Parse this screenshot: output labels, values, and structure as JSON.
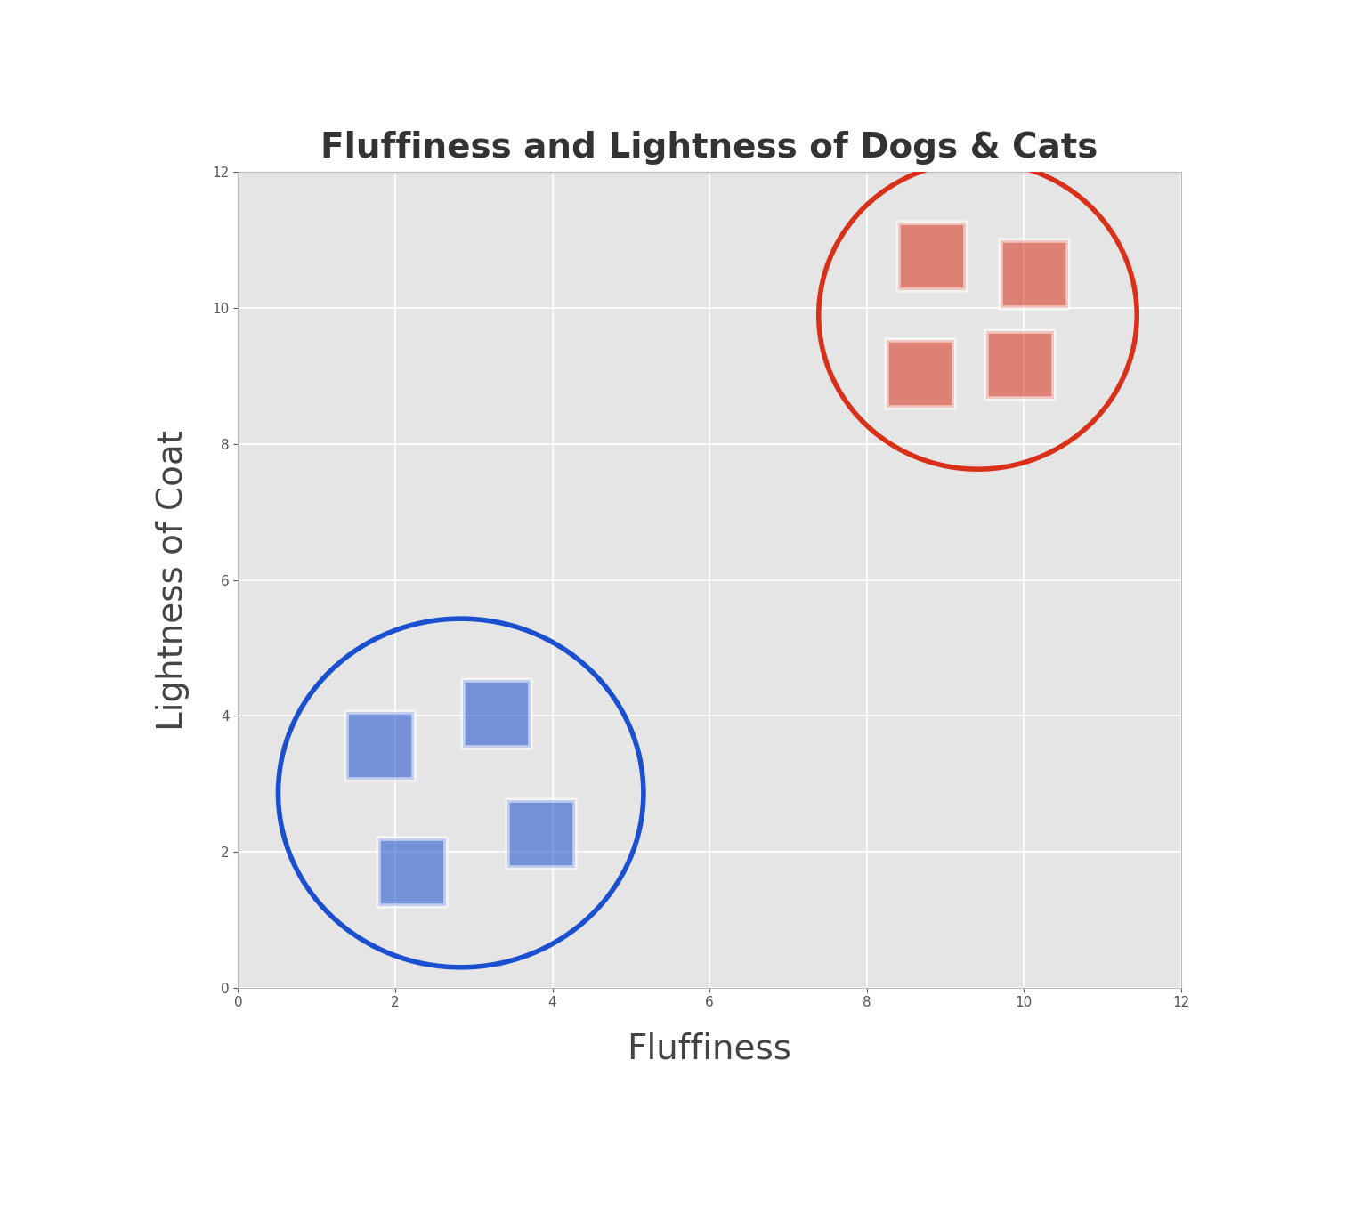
{
  "chart_data": {
    "type": "scatter",
    "title": "Fluffiness and Lightness of Dogs & Cats",
    "x_label": "Fluffiness",
    "y_label": "Lightness of Coat",
    "series": [
      {
        "color": "#1a4fd0",
        "marker": "square",
        "x": [
          1.81,
          3.29,
          3.86,
          2.21
        ],
        "values": [
          3.56,
          4.03,
          2.26,
          1.7
        ]
      },
      {
        "color": "#d9301a",
        "marker": "square",
        "x": [
          8.83,
          10.14,
          8.69,
          9.95
        ],
        "values": [
          10.76,
          10.5,
          9.03,
          9.16
        ]
      }
    ],
    "xlim": [
      0,
      12
    ],
    "ylim": [
      0,
      12
    ],
    "xticks": [
      0,
      2,
      4,
      6,
      8,
      10,
      12
    ],
    "yticks": [
      0,
      2,
      4,
      6,
      8,
      10,
      12
    ],
    "grid": true
  }
}
